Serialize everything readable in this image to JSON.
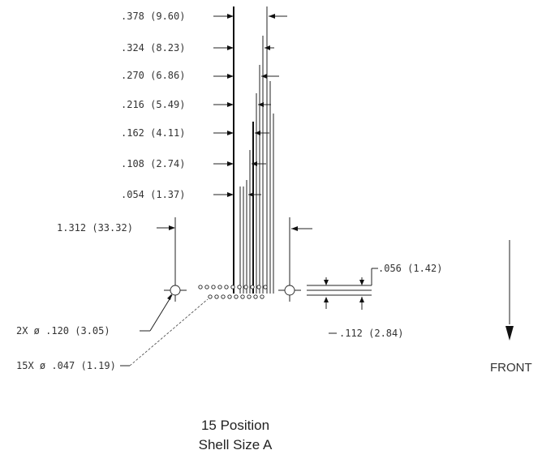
{
  "dimensions": {
    "d378": ".378 (9.60)",
    "d324": ".324 (8.23)",
    "d270": ".270 (6.86)",
    "d216": ".216 (5.49)",
    "d162": ".162 (4.11)",
    "d108": ".108 (2.74)",
    "d054": ".054 (1.37)",
    "width": "1.312 (33.32)",
    "row_offset": ".056 (1.42)",
    "row_spacing": ".112 (2.84)",
    "mount_holes": "2X ø .120 (3.05)",
    "contacts": "15X ø .047 (1.19)"
  },
  "direction_label": "FRONT",
  "caption": {
    "line1": "15 Position",
    "line2": "Shell Size A"
  }
}
